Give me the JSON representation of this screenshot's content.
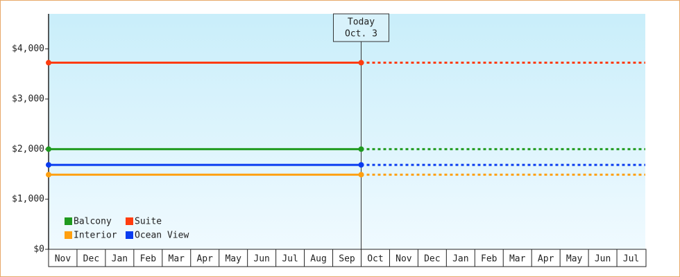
{
  "chart_data": {
    "type": "line",
    "categories": [
      "Nov",
      "Dec",
      "Jan",
      "Feb",
      "Mar",
      "Apr",
      "May",
      "Jun",
      "Jul",
      "Aug",
      "Sep",
      "Oct",
      "Nov",
      "Dec",
      "Jan",
      "Feb",
      "Mar",
      "Apr",
      "May",
      "Jun",
      "Jul"
    ],
    "series": [
      {
        "name": "Balcony",
        "color": "#1f9a1f",
        "values": [
          2000,
          2000,
          2000,
          2000,
          2000,
          2000,
          2000,
          2000,
          2000,
          2000,
          2000,
          2000,
          2000,
          2000,
          2000,
          2000,
          2000,
          2000,
          2000,
          2000,
          2000
        ]
      },
      {
        "name": "Suite",
        "color": "#ff3c0f",
        "values": [
          3725,
          3725,
          3725,
          3725,
          3725,
          3725,
          3725,
          3725,
          3725,
          3725,
          3725,
          3725,
          3725,
          3725,
          3725,
          3725,
          3725,
          3725,
          3725,
          3725,
          3725
        ]
      },
      {
        "name": "Interior",
        "color": "#ffa010",
        "values": [
          1490,
          1490,
          1490,
          1490,
          1490,
          1490,
          1490,
          1490,
          1490,
          1490,
          1490,
          1490,
          1490,
          1490,
          1490,
          1490,
          1490,
          1490,
          1490,
          1490,
          1490
        ]
      },
      {
        "name": "Ocean View",
        "color": "#0a3cf0",
        "values": [
          1685,
          1685,
          1685,
          1685,
          1685,
          1685,
          1685,
          1685,
          1685,
          1685,
          1685,
          1685,
          1685,
          1685,
          1685,
          1685,
          1685,
          1685,
          1685,
          1685,
          1685
        ]
      }
    ],
    "annotation": {
      "text": [
        "Today",
        "Oct. 3"
      ],
      "at": "Oct"
    },
    "ylim": [
      0,
      4700
    ],
    "yticks": [
      {
        "value": 0,
        "label": "$0"
      },
      {
        "value": 1000,
        "label": "$1,000"
      },
      {
        "value": 2000,
        "label": "$2,000"
      },
      {
        "value": 3000,
        "label": "$3,000"
      },
      {
        "value": 4000,
        "label": "$4,000"
      }
    ],
    "legend": "lower left"
  }
}
